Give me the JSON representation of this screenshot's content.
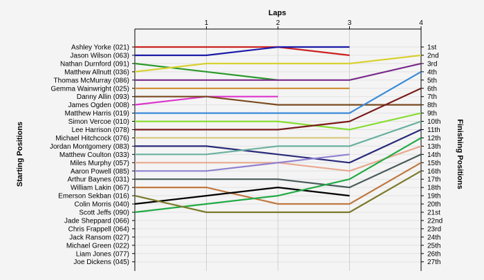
{
  "chart_data": {
    "type": "line",
    "title": "",
    "xlabel": "Laps",
    "ylabel_left": "Starting Positions",
    "ylabel_right": "Finishing Positions",
    "x_ticks": [
      "1",
      "2",
      "3",
      "4"
    ],
    "x_range": [
      0,
      4
    ],
    "y_range": [
      1,
      27
    ],
    "grid": true,
    "finishing_labels": [
      "1st",
      "2nd",
      "3rd",
      "4th",
      "5th",
      "6th",
      "7th",
      "8th",
      "9th",
      "10th",
      "11th",
      "12th",
      "13th",
      "14th",
      "15th",
      "16th",
      "17th",
      "18th",
      "19th",
      "20th",
      "21st",
      "22nd",
      "23rd",
      "24th",
      "25th",
      "26th",
      "27th"
    ],
    "series": [
      {
        "name": "Ashley Yorke (021)",
        "color": "#cc2222",
        "positions": [
          1,
          1,
          1,
          2
        ]
      },
      {
        "name": "Jason Wilson (063)",
        "color": "#1a1aa8",
        "positions": [
          2,
          2,
          1,
          1
        ]
      },
      {
        "name": "Nathan Durnford (091)",
        "color": "#2a9a2a",
        "positions": [
          3,
          4,
          5,
          null
        ]
      },
      {
        "name": "Matthew Allnutt (036)",
        "color": "#d8d030",
        "positions": [
          4,
          3,
          3,
          3,
          2
        ]
      },
      {
        "name": "Thomas McMurray (086)",
        "color": "#7a2a8a",
        "positions": [
          5,
          5,
          5,
          5,
          3
        ]
      },
      {
        "name": "Gemma Wainwright (025)",
        "color": "#d08a30",
        "positions": [
          6,
          6,
          6,
          6
        ]
      },
      {
        "name": "Danny Allin (093)",
        "color": "#dd33cc",
        "positions": [
          8,
          7,
          7,
          null
        ]
      },
      {
        "name": "James Ogden (008)",
        "color": "#7a4a20",
        "positions": [
          7,
          7,
          8,
          8,
          8
        ]
      },
      {
        "name": "Matthew Harris (019)",
        "color": "#3a8ad8",
        "positions": [
          9,
          9,
          9,
          9,
          4
        ]
      },
      {
        "name": "Simon Vercoe (010)",
        "color": "#88dd33",
        "positions": [
          10,
          10,
          10,
          11,
          9
        ]
      },
      {
        "name": "Lee Harrison (078)",
        "color": "#7a1a1a",
        "positions": [
          11,
          11,
          11,
          10,
          6
        ]
      },
      {
        "name": "Michael Hitchcock (076)",
        "color": "#d8c880",
        "positions": [
          12,
          12,
          12,
          12
        ]
      },
      {
        "name": "Jordan Montgomery (083)",
        "color": "#2a2a7a",
        "positions": [
          13,
          13,
          14,
          15,
          11
        ]
      },
      {
        "name": "Matthew Coulton (033)",
        "color": "#6ab0a0",
        "positions": [
          14,
          14,
          13,
          13,
          10
        ]
      },
      {
        "name": "Miles Murphy (057)",
        "color": "#e8a890",
        "positions": [
          15,
          15,
          15,
          16,
          13
        ]
      },
      {
        "name": "Aaron Powell (085)",
        "color": "#9080d0",
        "positions": [
          16,
          16,
          15,
          14
        ]
      },
      {
        "name": "Arthur Baynes (031)",
        "color": "#4a5a5a",
        "positions": [
          17,
          17,
          17,
          18,
          14
        ]
      },
      {
        "name": "William Lakin (067)",
        "color": "#c07840",
        "positions": [
          18,
          18,
          20,
          20,
          15
        ]
      },
      {
        "name": "Emerson Sekban (016)",
        "color": "#000000",
        "positions": [
          20,
          19,
          18,
          19
        ]
      },
      {
        "name": "Colin Morris (040)",
        "color": "#22aa44",
        "positions": [
          21,
          20,
          19,
          17,
          12
        ]
      },
      {
        "name": "Scott Jeffs (090)",
        "color": "#7a7a2a",
        "positions": [
          19,
          21,
          21,
          21,
          16
        ]
      },
      {
        "name": "Jade Sheppard (066)",
        "color": "",
        "positions": []
      },
      {
        "name": "Chris Frappell (064)",
        "color": "",
        "positions": []
      },
      {
        "name": "Jack Ransom (027)",
        "color": "",
        "positions": []
      },
      {
        "name": "Michael Green (022)",
        "color": "",
        "positions": []
      },
      {
        "name": "Liam Jones (077)",
        "color": "",
        "positions": []
      },
      {
        "name": "Joe Dickens (045)",
        "color": "",
        "positions": []
      }
    ]
  }
}
